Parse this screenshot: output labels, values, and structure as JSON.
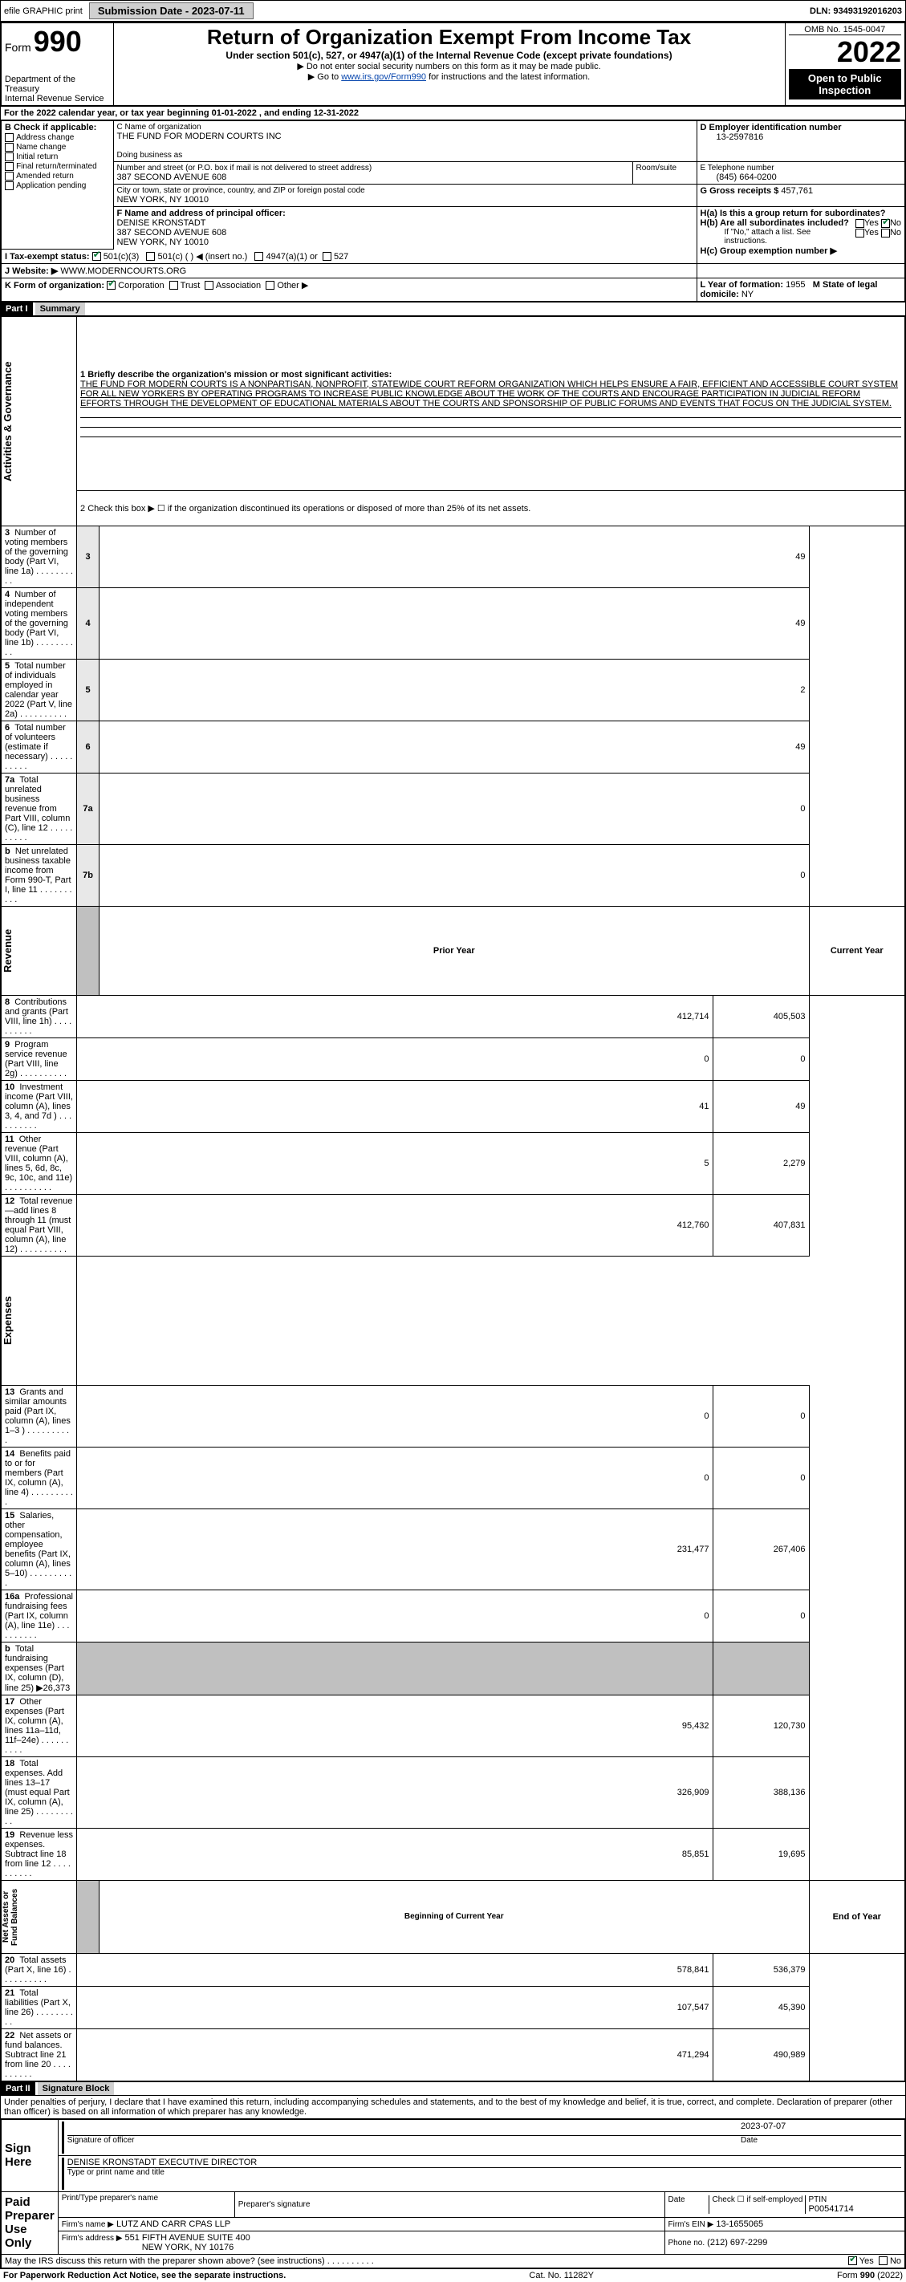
{
  "header": {
    "efile_label": "efile GRAPHIC print",
    "submission_btn": "Submission Date - 2023-07-11",
    "dln": "DLN: 93493192016203"
  },
  "title_block": {
    "form_word": "Form",
    "form_num": "990",
    "dept": "Department of the Treasury\nInternal Revenue Service",
    "main_title": "Return of Organization Exempt From Income Tax",
    "subtitle": "Under section 501(c), 527, or 4947(a)(1) of the Internal Revenue Code (except private foundations)",
    "note1": "▶ Do not enter social security numbers on this form as it may be made public.",
    "note2_pre": "▶ Go to ",
    "note2_link": "www.irs.gov/Form990",
    "note2_post": " for instructions and the latest information.",
    "omb": "OMB No. 1545-0047",
    "year": "2022",
    "open_public": "Open to Public Inspection"
  },
  "line_a": {
    "text": "For the 2022 calendar year, or tax year beginning 01-01-2022    , and ending 12-31-2022"
  },
  "block_b": {
    "header": "B Check if applicable:",
    "items": [
      "Address change",
      "Name change",
      "Initial return",
      "Final return/terminated",
      "Amended return",
      "Application pending"
    ]
  },
  "block_c": {
    "name_label": "C Name of organization",
    "name": "THE FUND FOR MODERN COURTS INC",
    "dba_label": "Doing business as",
    "dba": "",
    "addr_label": "Number and street (or P.O. box if mail is not delivered to street address)",
    "addr": "387 SECOND AVENUE 608",
    "room_label": "Room/suite",
    "city_label": "City or town, state or province, country, and ZIP or foreign postal code",
    "city": "NEW YORK, NY  10010"
  },
  "block_d": {
    "label": "D Employer identification number",
    "val": "13-2597816"
  },
  "block_e": {
    "label": "E Telephone number",
    "val": "(845) 664-0200"
  },
  "block_g": {
    "label": "G Gross receipts $",
    "val": "457,761"
  },
  "block_f": {
    "label": "F Name and address of principal officer:",
    "name": "DENISE KRONSTADT",
    "addr1": "387 SECOND AVENUE 608",
    "addr2": "NEW YORK, NY  10010"
  },
  "block_h": {
    "ha_label": "H(a)  Is this a group return for subordinates?",
    "hb_label": "H(b)  Are all subordinates included?",
    "hb_note": "If \"No,\" attach a list. See instructions.",
    "hc_label": "H(c)  Group exemption number ▶",
    "yes": "Yes",
    "no": "No"
  },
  "block_i": {
    "label": "I   Tax-exempt status:",
    "c3": "501(c)(3)",
    "c_other": "501(c) (   ) ◀ (insert no.)",
    "a1": "4947(a)(1) or",
    "s527": "527"
  },
  "block_j": {
    "label": "J   Website: ▶",
    "val": "WWW.MODERNCOURTS.ORG"
  },
  "block_k": {
    "label": "K Form of organization:",
    "corp": "Corporation",
    "trust": "Trust",
    "assoc": "Association",
    "other": "Other ▶"
  },
  "block_l": {
    "label": "L Year of formation:",
    "val": "1955"
  },
  "block_m": {
    "label": "M State of legal domicile:",
    "val": "NY"
  },
  "part1": {
    "header": "Part I",
    "title": "Summary",
    "line1_label": "1  Briefly describe the organization's mission or most significant activities:",
    "mission": "THE FUND FOR MODERN COURTS IS A NONPARTISAN, NONPROFIT, STATEWIDE COURT REFORM ORGANIZATION WHICH HELPS ENSURE A FAIR, EFFICIENT AND ACCESSIBLE COURT SYSTEM FOR ALL NEW YORKERS BY OPERATING PROGRAMS TO INCREASE PUBLIC KNOWLEDGE ABOUT THE WORK OF THE COURTS AND ENCOURAGE PARTICIPATION IN JUDICIAL REFORM EFFORTS THROUGH THE DEVELOPMENT OF EDUCATIONAL MATERIALS ABOUT THE COURTS AND SPONSORSHIP OF PUBLIC FORUMS AND EVENTS THAT FOCUS ON THE JUDICIAL SYSTEM."
  },
  "governance": {
    "side_label": "Activities & Governance",
    "line2": "2    Check this box ▶ ☐  if the organization discontinued its operations or disposed of more than 25% of its net assets.",
    "rows": [
      {
        "n": "3",
        "desc": "Number of voting members of the governing body (Part VI, line 1a)",
        "box": "3",
        "val": "49"
      },
      {
        "n": "4",
        "desc": "Number of independent voting members of the governing body (Part VI, line 1b)",
        "box": "4",
        "val": "49"
      },
      {
        "n": "5",
        "desc": "Total number of individuals employed in calendar year 2022 (Part V, line 2a)",
        "box": "5",
        "val": "2"
      },
      {
        "n": "6",
        "desc": "Total number of volunteers (estimate if necessary)",
        "box": "6",
        "val": "49"
      },
      {
        "n": "7a",
        "desc": "Total unrelated business revenue from Part VIII, column (C), line 12",
        "box": "7a",
        "val": "0"
      },
      {
        "n": "b",
        "desc": "Net unrelated business taxable income from Form 990-T, Part I, line 11",
        "box": "7b",
        "val": "0"
      }
    ]
  },
  "revenue": {
    "side_label": "Revenue",
    "prior_h": "Prior Year",
    "curr_h": "Current Year",
    "rows": [
      {
        "n": "8",
        "desc": "Contributions and grants (Part VIII, line 1h)",
        "prior": "412,714",
        "curr": "405,503"
      },
      {
        "n": "9",
        "desc": "Program service revenue (Part VIII, line 2g)",
        "prior": "0",
        "curr": "0"
      },
      {
        "n": "10",
        "desc": "Investment income (Part VIII, column (A), lines 3, 4, and 7d )",
        "prior": "41",
        "curr": "49"
      },
      {
        "n": "11",
        "desc": "Other revenue (Part VIII, column (A), lines 5, 6d, 8c, 9c, 10c, and 11e)",
        "prior": "5",
        "curr": "2,279"
      },
      {
        "n": "12",
        "desc": "Total revenue—add lines 8 through 11 (must equal Part VIII, column (A), line 12)",
        "prior": "412,760",
        "curr": "407,831"
      }
    ]
  },
  "expenses": {
    "side_label": "Expenses",
    "rows": [
      {
        "n": "13",
        "desc": "Grants and similar amounts paid (Part IX, column (A), lines 1–3 )",
        "prior": "0",
        "curr": "0"
      },
      {
        "n": "14",
        "desc": "Benefits paid to or for members (Part IX, column (A), line 4)",
        "prior": "0",
        "curr": "0"
      },
      {
        "n": "15",
        "desc": "Salaries, other compensation, employee benefits (Part IX, column (A), lines 5–10)",
        "prior": "231,477",
        "curr": "267,406"
      },
      {
        "n": "16a",
        "desc": "Professional fundraising fees (Part IX, column (A), line 11e)",
        "prior": "0",
        "curr": "0"
      },
      {
        "n": "b",
        "desc": "Total fundraising expenses (Part IX, column (D), line 25) ▶26,373",
        "prior": "",
        "curr": "",
        "shaded": true
      },
      {
        "n": "17",
        "desc": "Other expenses (Part IX, column (A), lines 11a–11d, 11f–24e)",
        "prior": "95,432",
        "curr": "120,730"
      },
      {
        "n": "18",
        "desc": "Total expenses. Add lines 13–17 (must equal Part IX, column (A), line 25)",
        "prior": "326,909",
        "curr": "388,136"
      },
      {
        "n": "19",
        "desc": "Revenue less expenses. Subtract line 18 from line 12",
        "prior": "85,851",
        "curr": "19,695"
      }
    ]
  },
  "netassets": {
    "side_label": "Net Assets or Fund Balances",
    "begin_h": "Beginning of Current Year",
    "end_h": "End of Year",
    "rows": [
      {
        "n": "20",
        "desc": "Total assets (Part X, line 16)",
        "prior": "578,841",
        "curr": "536,379"
      },
      {
        "n": "21",
        "desc": "Total liabilities (Part X, line 26)",
        "prior": "107,547",
        "curr": "45,390"
      },
      {
        "n": "22",
        "desc": "Net assets or fund balances. Subtract line 21 from line 20",
        "prior": "471,294",
        "curr": "490,989"
      }
    ]
  },
  "part2": {
    "header": "Part II",
    "title": "Signature Block",
    "declaration": "Under penalties of perjury, I declare that I have examined this return, including accompanying schedules and statements, and to the best of my knowledge and belief, it is true, correct, and complete. Declaration of preparer (other than officer) is based on all information of which preparer has any knowledge.",
    "sign_here": "Sign Here",
    "sig_officer": "Signature of officer",
    "sig_date": "Date",
    "sig_date_val": "2023-07-07",
    "officer_name": "DENISE KRONSTADT  EXECUTIVE DIRECTOR",
    "type_name": "Type or print name and title",
    "paid": "Paid Preparer Use Only",
    "prep_name_h": "Print/Type preparer's name",
    "prep_sig_h": "Preparer's signature",
    "prep_date_h": "Date",
    "self_emp": "Check ☐ if self-employed",
    "ptin_h": "PTIN",
    "ptin": "P00541714",
    "firm_name_l": "Firm's name    ▶",
    "firm_name": "LUTZ AND CARR CPAS LLP",
    "firm_ein_l": "Firm's EIN ▶",
    "firm_ein": "13-1655065",
    "firm_addr_l": "Firm's address ▶",
    "firm_addr": "551 FIFTH AVENUE SUITE 400",
    "firm_city": "NEW YORK, NY  10176",
    "phone_l": "Phone no.",
    "phone": "(212) 697-2299",
    "may_irs": "May the IRS discuss this return with the preparer shown above? (see instructions)",
    "yes": "Yes",
    "no": "No"
  },
  "footer": {
    "left": "For Paperwork Reduction Act Notice, see the separate instructions.",
    "mid": "Cat. No. 11282Y",
    "right": "Form 990 (2022)"
  },
  "colors": {
    "link": "#0645ad",
    "check": "#0a7a3a",
    "shade": "#c0c0c0",
    "lightshade": "#e8e8e8"
  }
}
